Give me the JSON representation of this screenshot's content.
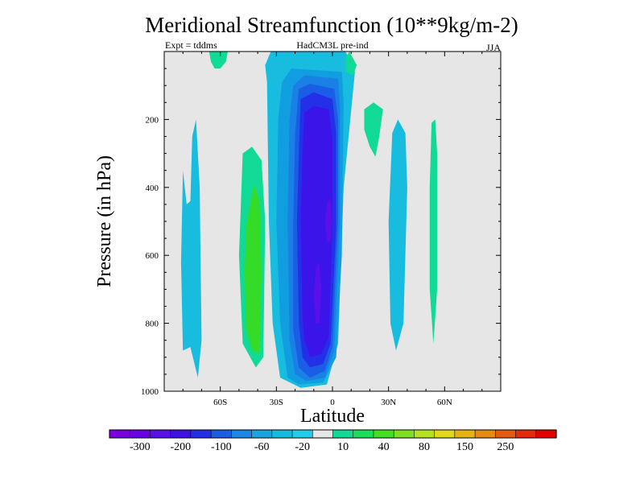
{
  "chart_data": {
    "type": "heatmap",
    "title": "Meridional Streamfunction (10**9kg/m-2)",
    "subtitle_left": "Expt = tddms",
    "subtitle_center": "HadCM3L pre-ind",
    "subtitle_right": "JJA",
    "xlabel": "Latitude",
    "ylabel": "Pressure (in hPa)",
    "xlim": [
      -90,
      90
    ],
    "ylim": [
      1000,
      0
    ],
    "x_ticks": [
      {
        "value": -60,
        "label": "60S"
      },
      {
        "value": -30,
        "label": "30S"
      },
      {
        "value": 0,
        "label": "0"
      },
      {
        "value": 30,
        "label": "30N"
      },
      {
        "value": 60,
        "label": "60N"
      }
    ],
    "y_ticks": [
      {
        "value": 200,
        "label": "200"
      },
      {
        "value": 400,
        "label": "400"
      },
      {
        "value": 600,
        "label": "600"
      },
      {
        "value": 800,
        "label": "800"
      },
      {
        "value": 1000,
        "label": "1000"
      }
    ],
    "background_color": "#e6e6e6",
    "colorbar": {
      "levels": [
        "-300",
        "-200",
        "-100",
        "-60",
        "-20",
        "10",
        "40",
        "80",
        "150",
        "250"
      ],
      "colors": [
        "#7b00e0",
        "#6a00e6",
        "#5a10e8",
        "#3d10e6",
        "#2330e8",
        "#1a5ee6",
        "#1a86e6",
        "#18a4e0",
        "#12bce0",
        "#22ccec",
        "#e6e6e6",
        "#10da96",
        "#18e05a",
        "#40e020",
        "#7ee020",
        "#b4e21e",
        "#e0d818",
        "#e6b410",
        "#e68a10",
        "#e65a10",
        "#e62a0a",
        "#e60000"
      ]
    },
    "regions": [
      {
        "name": "south-outer-cell",
        "value": -20,
        "color": "#18bcde",
        "points": [
          [
            -80,
            350
          ],
          [
            -78,
            450
          ],
          [
            -76,
            440
          ],
          [
            -75,
            250
          ],
          [
            -73,
            200
          ],
          [
            -71,
            400
          ],
          [
            -70,
            850
          ],
          [
            -72,
            960
          ],
          [
            -76,
            870
          ],
          [
            -80,
            880
          ],
          [
            -81,
            620
          ]
        ]
      },
      {
        "name": "southern-ferrel-outer",
        "value": 10,
        "color": "#10da96",
        "points": [
          [
            -48,
            300
          ],
          [
            -43,
            280
          ],
          [
            -38,
            320
          ],
          [
            -36,
            500
          ],
          [
            -37,
            900
          ],
          [
            -41,
            930
          ],
          [
            -48,
            860
          ],
          [
            -50,
            600
          ]
        ]
      },
      {
        "name": "southern-ferrel-inner",
        "value": 40,
        "color": "#34dc28",
        "points": [
          [
            -46,
            510
          ],
          [
            -42,
            390
          ],
          [
            -39,
            440
          ],
          [
            -38,
            650
          ],
          [
            -39,
            890
          ],
          [
            -43,
            880
          ],
          [
            -46,
            820
          ],
          [
            -47,
            650
          ]
        ]
      },
      {
        "name": "hadley-m20",
        "value": -20,
        "color": "#18bcde",
        "points": [
          [
            -35,
            90
          ],
          [
            -36,
            40
          ],
          [
            -33,
            0
          ],
          [
            7,
            0
          ],
          [
            12,
            60
          ],
          [
            6,
            400
          ],
          [
            3,
            860
          ],
          [
            -3,
            980
          ],
          [
            -17,
            990
          ],
          [
            -28,
            960
          ],
          [
            -32,
            800
          ],
          [
            -34,
            500
          ]
        ]
      },
      {
        "name": "hadley-m30",
        "value": -30,
        "color": "#109ee0",
        "points": [
          [
            -29,
            200
          ],
          [
            -27,
            90
          ],
          [
            -22,
            50
          ],
          [
            5,
            60
          ],
          [
            6,
            150
          ],
          [
            5,
            600
          ],
          [
            2,
            900
          ],
          [
            -5,
            975
          ],
          [
            -18,
            980
          ],
          [
            -24,
            960
          ],
          [
            -28,
            800
          ],
          [
            -30,
            500
          ]
        ]
      },
      {
        "name": "hadley-m40",
        "value": -40,
        "color": "#1a80e6",
        "points": [
          [
            -23,
            200
          ],
          [
            -21,
            100
          ],
          [
            -15,
            70
          ],
          [
            3,
            80
          ],
          [
            4,
            160
          ],
          [
            4,
            500
          ],
          [
            1,
            880
          ],
          [
            -4,
            960
          ],
          [
            -14,
            970
          ],
          [
            -20,
            950
          ],
          [
            -23,
            850
          ],
          [
            -24,
            500
          ]
        ]
      },
      {
        "name": "hadley-m60",
        "value": -60,
        "color": "#1a5ee6",
        "points": [
          [
            -20,
            240
          ],
          [
            -18,
            110
          ],
          [
            -12,
            95
          ],
          [
            1,
            110
          ],
          [
            3,
            200
          ],
          [
            3,
            500
          ],
          [
            0,
            870
          ],
          [
            -4,
            940
          ],
          [
            -12,
            960
          ],
          [
            -18,
            930
          ],
          [
            -21,
            820
          ],
          [
            -21,
            500
          ]
        ]
      },
      {
        "name": "hadley-m100",
        "value": -100,
        "color": "#2430e8",
        "points": [
          [
            -18,
            300
          ],
          [
            -17,
            140
          ],
          [
            -10,
            120
          ],
          [
            0,
            140
          ],
          [
            2,
            240
          ],
          [
            2,
            520
          ],
          [
            -1,
            860
          ],
          [
            -5,
            920
          ],
          [
            -12,
            930
          ],
          [
            -16,
            900
          ],
          [
            -18,
            800
          ],
          [
            -19,
            500
          ]
        ]
      },
      {
        "name": "hadley-m150",
        "value": -150,
        "color": "#3a14e8",
        "points": [
          [
            -16,
            300
          ],
          [
            -15,
            180
          ],
          [
            -10,
            160
          ],
          [
            -2,
            170
          ],
          [
            0,
            260
          ],
          [
            0,
            500
          ],
          [
            -2,
            840
          ],
          [
            -6,
            890
          ],
          [
            -12,
            900
          ],
          [
            -15,
            850
          ],
          [
            -16,
            780
          ],
          [
            -17,
            500
          ]
        ]
      },
      {
        "name": "hadley-m200",
        "value": -200,
        "color": "#5a10ea",
        "points": [
          [
            -3,
            450
          ],
          [
            -1,
            430
          ],
          [
            0,
            500
          ],
          [
            -1,
            560
          ],
          [
            -3,
            560
          ],
          [
            -4,
            500
          ]
        ]
      },
      {
        "name": "hadley-m200-lower",
        "value": -200,
        "color": "#5a10ea",
        "points": [
          [
            -9,
            640
          ],
          [
            -7,
            620
          ],
          [
            -6,
            700
          ],
          [
            -7,
            800
          ],
          [
            -9,
            800
          ],
          [
            -10,
            720
          ]
        ]
      },
      {
        "name": "north-green-top",
        "value": 10,
        "color": "#10da96",
        "points": [
          [
            9,
            0
          ],
          [
            13,
            40
          ],
          [
            11,
            70
          ],
          [
            7,
            60
          ],
          [
            7,
            20
          ]
        ]
      },
      {
        "name": "south-green-top",
        "value": 10,
        "color": "#10da96",
        "points": [
          [
            -66,
            0
          ],
          [
            -56,
            0
          ],
          [
            -57,
            30
          ],
          [
            -60,
            50
          ],
          [
            -63,
            50
          ],
          [
            -65,
            30
          ]
        ]
      },
      {
        "name": "north-green-mid",
        "value": 10,
        "color": "#10da96",
        "points": [
          [
            17,
            170
          ],
          [
            22,
            150
          ],
          [
            27,
            170
          ],
          [
            25,
            250
          ],
          [
            23,
            310
          ],
          [
            20,
            280
          ],
          [
            17,
            230
          ]
        ]
      },
      {
        "name": "north-subtropical-cell",
        "value": -20,
        "color": "#18bcde",
        "points": [
          [
            32,
            240
          ],
          [
            35,
            200
          ],
          [
            39,
            240
          ],
          [
            40,
            400
          ],
          [
            38,
            800
          ],
          [
            34,
            880
          ],
          [
            31,
            800
          ],
          [
            30,
            500
          ]
        ]
      },
      {
        "name": "north-green-outer",
        "value": 10,
        "color": "#10da96",
        "points": [
          [
            53,
            210
          ],
          [
            55,
            200
          ],
          [
            56,
            300
          ],
          [
            56,
            700
          ],
          [
            54,
            860
          ],
          [
            52,
            700
          ],
          [
            52,
            400
          ]
        ]
      }
    ]
  }
}
